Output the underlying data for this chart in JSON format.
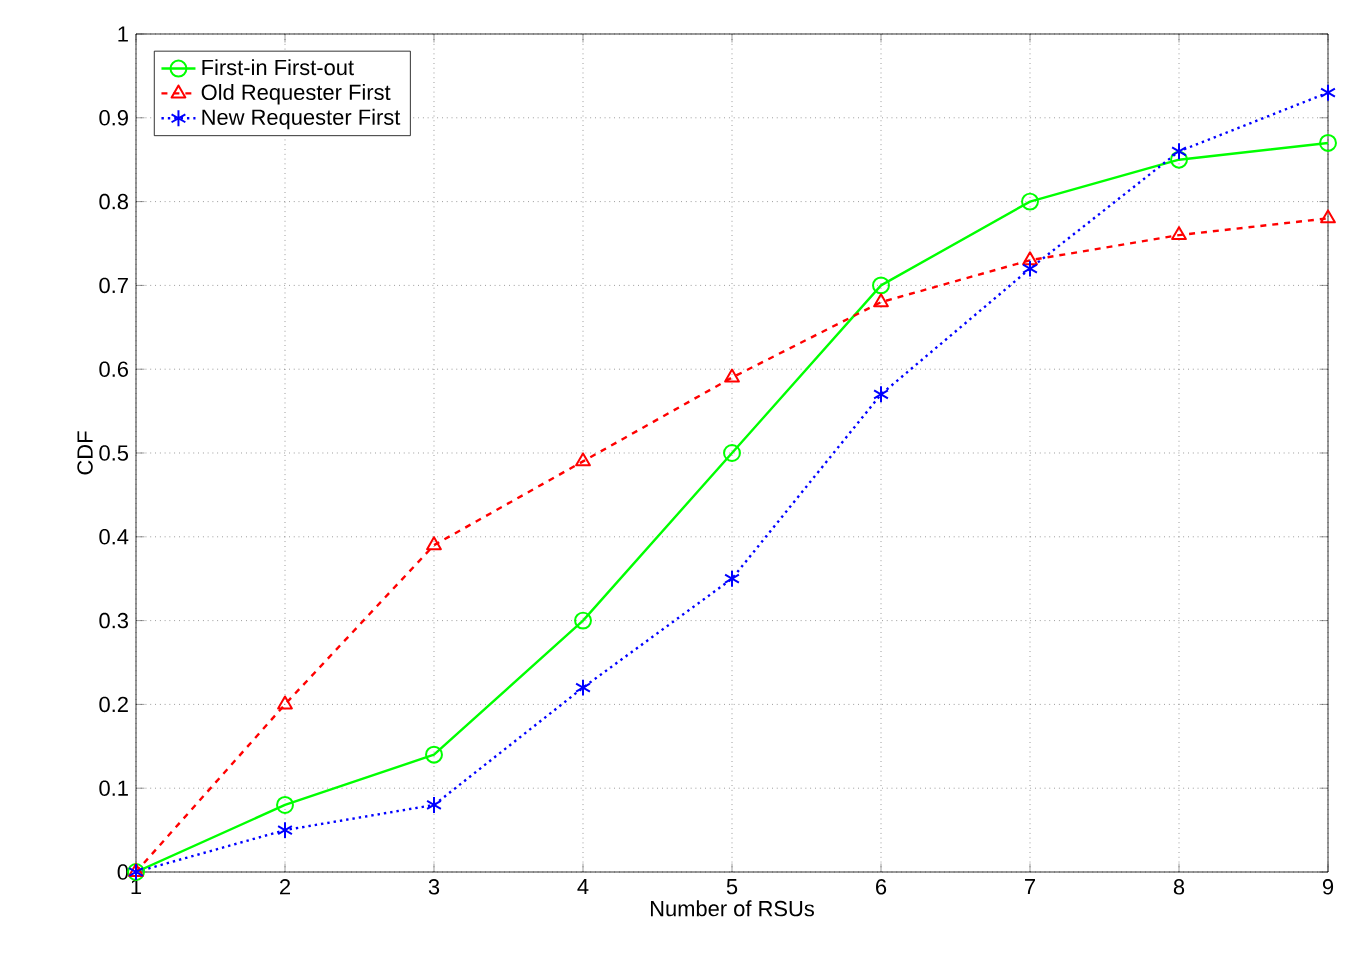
{
  "chart_data": {
    "type": "line",
    "xlabel": "Number of RSUs",
    "ylabel": "CDF",
    "x": [
      1,
      2,
      3,
      4,
      5,
      6,
      7,
      8,
      9
    ],
    "series": [
      {
        "name": "First-in First-out",
        "color": "#00ff00",
        "marker": "circle",
        "line_style": "solid",
        "values": [
          0,
          0.08,
          0.14,
          0.3,
          0.5,
          0.7,
          0.8,
          0.85,
          0.87
        ]
      },
      {
        "name": "Old Requester First",
        "color": "#ff0000",
        "marker": "triangle",
        "line_style": "dashed",
        "values": [
          0,
          0.2,
          0.39,
          0.49,
          0.59,
          0.68,
          0.73,
          0.76,
          0.78
        ]
      },
      {
        "name": "New Requester First",
        "color": "#0000ff",
        "marker": "cross",
        "line_style": "dotted",
        "values": [
          0,
          0.05,
          0.08,
          0.22,
          0.35,
          0.57,
          0.72,
          0.86,
          0.93
        ]
      }
    ],
    "xlim": [
      1,
      9
    ],
    "ylim": [
      0,
      1
    ],
    "xticks": [
      1,
      2,
      3,
      4,
      5,
      6,
      7,
      8,
      9
    ],
    "yticks": [
      0,
      0.1,
      0.2,
      0.3,
      0.4,
      0.5,
      0.6,
      0.7,
      0.8,
      0.9,
      1
    ],
    "grid": true,
    "legend": "top left"
  }
}
